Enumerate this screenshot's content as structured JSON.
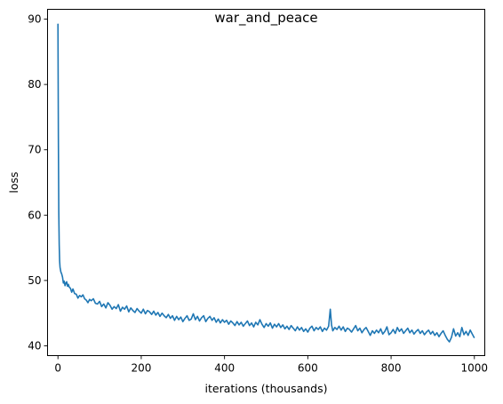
{
  "chart_data": {
    "type": "line",
    "title": "war_and_peace",
    "xlabel": "iterations (thousands)",
    "ylabel": "loss",
    "xlim": [
      -25,
      1025
    ],
    "ylim": [
      38.5,
      91.5
    ],
    "xticks": [
      0,
      200,
      400,
      600,
      800,
      1000
    ],
    "yticks": [
      40,
      50,
      60,
      70,
      80,
      90
    ],
    "grid": false,
    "series": [
      {
        "color": "#1f77b4",
        "points": [
          [
            0,
            89.3
          ],
          [
            1,
            72.0
          ],
          [
            2,
            60.5
          ],
          [
            3,
            55.5
          ],
          [
            4,
            53.0
          ],
          [
            5,
            52.0
          ],
          [
            7,
            51.3
          ],
          [
            9,
            51.0
          ],
          [
            11,
            50.5
          ],
          [
            13,
            49.6
          ],
          [
            15,
            49.9
          ],
          [
            17,
            49.2
          ],
          [
            19,
            49.6
          ],
          [
            21,
            49.8
          ],
          [
            23,
            49.1
          ],
          [
            25,
            49.4
          ],
          [
            27,
            49.0
          ],
          [
            30,
            48.8
          ],
          [
            33,
            48.2
          ],
          [
            36,
            48.7
          ],
          [
            40,
            48.0
          ],
          [
            44,
            47.9
          ],
          [
            48,
            47.3
          ],
          [
            52,
            47.7
          ],
          [
            56,
            47.5
          ],
          [
            60,
            47.8
          ],
          [
            64,
            47.2
          ],
          [
            68,
            47.0
          ],
          [
            72,
            46.6
          ],
          [
            76,
            47.1
          ],
          [
            80,
            46.9
          ],
          [
            85,
            47.2
          ],
          [
            90,
            46.5
          ],
          [
            95,
            46.4
          ],
          [
            100,
            46.8
          ],
          [
            105,
            46.0
          ],
          [
            110,
            46.4
          ],
          [
            115,
            45.8
          ],
          [
            120,
            46.6
          ],
          [
            125,
            46.2
          ],
          [
            130,
            45.6
          ],
          [
            135,
            46.0
          ],
          [
            140,
            45.7
          ],
          [
            145,
            46.3
          ],
          [
            150,
            45.3
          ],
          [
            155,
            45.9
          ],
          [
            160,
            45.6
          ],
          [
            165,
            46.1
          ],
          [
            170,
            45.2
          ],
          [
            175,
            45.8
          ],
          [
            180,
            45.4
          ],
          [
            185,
            45.1
          ],
          [
            190,
            45.7
          ],
          [
            195,
            45.3
          ],
          [
            200,
            45.0
          ],
          [
            205,
            45.6
          ],
          [
            210,
            44.9
          ],
          [
            215,
            45.4
          ],
          [
            220,
            45.2
          ],
          [
            225,
            44.8
          ],
          [
            230,
            45.3
          ],
          [
            235,
            44.7
          ],
          [
            240,
            45.1
          ],
          [
            245,
            44.5
          ],
          [
            250,
            45.0
          ],
          [
            255,
            44.6
          ],
          [
            260,
            44.3
          ],
          [
            265,
            44.8
          ],
          [
            270,
            44.2
          ],
          [
            275,
            44.6
          ],
          [
            280,
            43.9
          ],
          [
            285,
            44.5
          ],
          [
            290,
            44.0
          ],
          [
            295,
            44.4
          ],
          [
            300,
            43.7
          ],
          [
            305,
            44.2
          ],
          [
            310,
            44.6
          ],
          [
            315,
            43.9
          ],
          [
            320,
            44.1
          ],
          [
            325,
            44.9
          ],
          [
            330,
            44.0
          ],
          [
            335,
            44.5
          ],
          [
            340,
            43.8
          ],
          [
            345,
            44.3
          ],
          [
            350,
            44.6
          ],
          [
            355,
            43.7
          ],
          [
            360,
            44.2
          ],
          [
            365,
            44.5
          ],
          [
            370,
            43.9
          ],
          [
            375,
            44.3
          ],
          [
            380,
            43.6
          ],
          [
            385,
            44.1
          ],
          [
            390,
            43.5
          ],
          [
            395,
            44.0
          ],
          [
            400,
            43.6
          ],
          [
            405,
            43.9
          ],
          [
            410,
            43.3
          ],
          [
            415,
            43.8
          ],
          [
            420,
            43.5
          ],
          [
            425,
            43.1
          ],
          [
            430,
            43.7
          ],
          [
            435,
            43.2
          ],
          [
            440,
            43.6
          ],
          [
            445,
            43.0
          ],
          [
            450,
            43.4
          ],
          [
            455,
            43.8
          ],
          [
            460,
            43.1
          ],
          [
            465,
            43.5
          ],
          [
            470,
            42.9
          ],
          [
            475,
            43.6
          ],
          [
            480,
            43.2
          ],
          [
            485,
            44.0
          ],
          [
            490,
            43.3
          ],
          [
            495,
            42.8
          ],
          [
            500,
            43.4
          ],
          [
            505,
            43.0
          ],
          [
            510,
            43.5
          ],
          [
            515,
            42.7
          ],
          [
            520,
            43.3
          ],
          [
            525,
            42.9
          ],
          [
            530,
            43.4
          ],
          [
            535,
            42.8
          ],
          [
            540,
            43.2
          ],
          [
            545,
            42.6
          ],
          [
            550,
            43.0
          ],
          [
            555,
            42.5
          ],
          [
            560,
            43.1
          ],
          [
            565,
            42.7
          ],
          [
            570,
            42.3
          ],
          [
            575,
            42.9
          ],
          [
            580,
            42.4
          ],
          [
            585,
            42.8
          ],
          [
            590,
            42.2
          ],
          [
            595,
            42.6
          ],
          [
            600,
            42.1
          ],
          [
            605,
            42.7
          ],
          [
            610,
            43.0
          ],
          [
            615,
            42.3
          ],
          [
            620,
            42.8
          ],
          [
            625,
            42.5
          ],
          [
            630,
            42.9
          ],
          [
            635,
            42.2
          ],
          [
            640,
            42.7
          ],
          [
            645,
            42.4
          ],
          [
            650,
            43.0
          ],
          [
            654,
            45.6
          ],
          [
            657,
            43.2
          ],
          [
            660,
            42.3
          ],
          [
            665,
            42.8
          ],
          [
            670,
            42.5
          ],
          [
            675,
            43.0
          ],
          [
            680,
            42.4
          ],
          [
            685,
            42.9
          ],
          [
            690,
            42.2
          ],
          [
            695,
            42.7
          ],
          [
            700,
            42.5
          ],
          [
            705,
            42.1
          ],
          [
            710,
            42.6
          ],
          [
            715,
            43.1
          ],
          [
            720,
            42.3
          ],
          [
            725,
            42.7
          ],
          [
            730,
            42.0
          ],
          [
            735,
            42.5
          ],
          [
            740,
            42.8
          ],
          [
            745,
            42.2
          ],
          [
            750,
            41.6
          ],
          [
            755,
            42.3
          ],
          [
            760,
            41.9
          ],
          [
            765,
            42.4
          ],
          [
            770,
            42.0
          ],
          [
            775,
            42.6
          ],
          [
            780,
            41.8
          ],
          [
            785,
            42.2
          ],
          [
            790,
            42.9
          ],
          [
            795,
            41.7
          ],
          [
            800,
            42.0
          ],
          [
            805,
            42.5
          ],
          [
            810,
            41.9
          ],
          [
            815,
            42.8
          ],
          [
            820,
            42.2
          ],
          [
            825,
            42.6
          ],
          [
            830,
            41.9
          ],
          [
            835,
            42.3
          ],
          [
            840,
            42.7
          ],
          [
            845,
            42.0
          ],
          [
            850,
            42.4
          ],
          [
            855,
            41.8
          ],
          [
            860,
            42.2
          ],
          [
            865,
            42.5
          ],
          [
            870,
            41.9
          ],
          [
            875,
            42.3
          ],
          [
            880,
            41.7
          ],
          [
            885,
            42.1
          ],
          [
            890,
            42.4
          ],
          [
            895,
            41.8
          ],
          [
            900,
            42.2
          ],
          [
            905,
            41.6
          ],
          [
            910,
            42.0
          ],
          [
            915,
            41.4
          ],
          [
            920,
            41.9
          ],
          [
            925,
            42.3
          ],
          [
            930,
            41.6
          ],
          [
            935,
            41.0
          ],
          [
            940,
            40.6
          ],
          [
            945,
            41.3
          ],
          [
            950,
            42.6
          ],
          [
            955,
            41.5
          ],
          [
            960,
            42.0
          ],
          [
            965,
            41.4
          ],
          [
            970,
            42.8
          ],
          [
            975,
            41.7
          ],
          [
            980,
            42.2
          ],
          [
            985,
            41.6
          ],
          [
            990,
            42.4
          ],
          [
            995,
            41.8
          ],
          [
            1000,
            41.2
          ]
        ]
      }
    ]
  }
}
